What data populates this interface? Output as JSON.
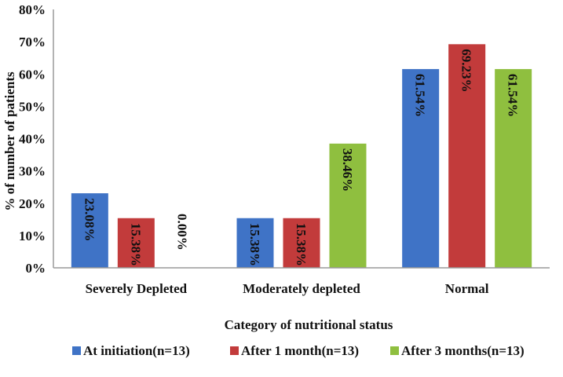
{
  "chart_data": {
    "type": "bar",
    "xlabel": "Category of nutritional status",
    "ylabel": "% of number of patients",
    "ylim": [
      0,
      80
    ],
    "ytick_step": 10,
    "ytick_suffix": "%",
    "grid": false,
    "legend_position": "bottom",
    "categories": [
      "Severely Depleted",
      "Moderately depleted",
      "Normal"
    ],
    "series": [
      {
        "name": "At initiation(n=13)",
        "color": "#3f73c6",
        "values": [
          23.08,
          15.38,
          61.54
        ],
        "labels": [
          "23.08%",
          "15.38%",
          "61.54%"
        ]
      },
      {
        "name": "After 1 month(n=13)",
        "color": "#c23b3b",
        "values": [
          15.38,
          15.38,
          69.23
        ],
        "labels": [
          "15.38%",
          "15.38%",
          "69.23%"
        ]
      },
      {
        "name": "After 3 months(n=13)",
        "color": "#8fbf3f",
        "values": [
          0.0,
          38.46,
          61.54
        ],
        "labels": [
          "0.00%",
          "38.46%",
          "61.54%"
        ]
      }
    ]
  }
}
